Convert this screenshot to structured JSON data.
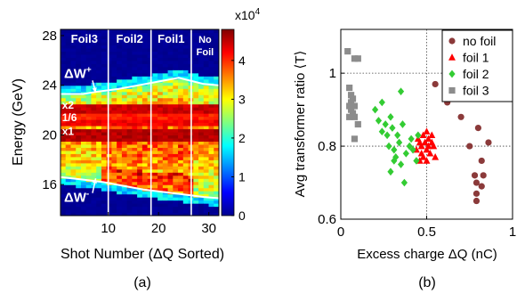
{
  "chart_data": [
    {
      "type": "heatmap",
      "panel_label": "(a)",
      "xlabel": "Shot Number (ΔQ Sorted)",
      "ylabel": "Energy (GeV)",
      "xlim": [
        0.5,
        32
      ],
      "ylim": [
        13.5,
        28.5
      ],
      "xticks": [
        {
          "value": 10,
          "label": "10"
        },
        {
          "value": 20,
          "label": "20"
        },
        {
          "value": 30,
          "label": "30"
        }
      ],
      "yticks": [
        {
          "value": 16,
          "label": "16"
        },
        {
          "value": 20,
          "label": "20"
        },
        {
          "value": 24,
          "label": "24"
        },
        {
          "value": 28,
          "label": "28"
        }
      ],
      "colorbar": {
        "multiplier": "x10",
        "exponent": "4",
        "range": [
          0,
          4.8
        ],
        "ticks": [
          {
            "value": 0,
            "label": "0"
          },
          {
            "value": 1,
            "label": "1"
          },
          {
            "value": 2,
            "label": "2"
          },
          {
            "value": 3,
            "label": "3"
          },
          {
            "value": 4,
            "label": "4"
          }
        ]
      },
      "regions": [
        {
          "label": "Foil3",
          "from": 0.5,
          "to": 10
        },
        {
          "label": "Foil2",
          "from": 10,
          "to": 18.5
        },
        {
          "label": "Foil1",
          "from": 18.5,
          "to": 26.5
        },
        {
          "label": "No\nFoil",
          "from": 26.5,
          "to": 32
        }
      ],
      "annotations": [
        {
          "label": "ΔW",
          "sup": "+",
          "x": 1.2,
          "y": 24.6,
          "arrow_to": [
            7.5,
            23.4
          ]
        },
        {
          "label": "ΔW",
          "sup": "-",
          "x": 1.2,
          "y": 14.6,
          "arrow_to": [
            7.5,
            16.5
          ]
        },
        {
          "label": "x2",
          "x": 0.8,
          "y": 22.1
        },
        {
          "label": "1/6",
          "x": 0.8,
          "y": 21.1
        },
        {
          "label": "x1",
          "x": 0.8,
          "y": 20.0
        }
      ],
      "upper_edge": [
        [
          0.5,
          23.3
        ],
        [
          5,
          23.3
        ],
        [
          8,
          23.5
        ],
        [
          12,
          23.7
        ],
        [
          16,
          24.0
        ],
        [
          20,
          24.3
        ],
        [
          24,
          24.6
        ],
        [
          27,
          24.3
        ],
        [
          29,
          24.1
        ],
        [
          32,
          24.0
        ]
      ],
      "lower_edge": [
        [
          0.5,
          16.6
        ],
        [
          5,
          16.4
        ],
        [
          9,
          16.2
        ],
        [
          13,
          15.9
        ],
        [
          17,
          15.6
        ],
        [
          21,
          15.4
        ],
        [
          25,
          15.2
        ],
        [
          29,
          15.0
        ],
        [
          32,
          14.9
        ]
      ],
      "bands": [
        {
          "y": 22.1,
          "width": 0.25,
          "value": 4.6
        },
        {
          "y": 21.55,
          "width": 0.2,
          "value": 4.2
        },
        {
          "y": 21.0,
          "width": 0.2,
          "value": 4.4
        },
        {
          "y": 20.0,
          "width": 0.3,
          "value": 4.7
        }
      ]
    },
    {
      "type": "scatter",
      "panel_label": "(b)",
      "xlabel": "Excess charge ΔQ (nC)",
      "ylabel": "Avg transformer ratio ⟨T⟩",
      "xlim": [
        0,
        1
      ],
      "ylim": [
        0.6,
        1.12
      ],
      "xticks": [
        {
          "value": 0,
          "label": "0"
        },
        {
          "value": 0.5,
          "label": "0.5"
        },
        {
          "value": 1,
          "label": "1"
        }
      ],
      "yticks": [
        {
          "value": 0.6,
          "label": "0.6"
        },
        {
          "value": 0.8,
          "label": "0.8"
        },
        {
          "value": 1,
          "label": "1"
        }
      ],
      "grid": true,
      "legend": "top-right",
      "series": [
        {
          "name": "no foil",
          "marker": "circle",
          "color": "#8b3a3a",
          "points": [
            [
              0.55,
              0.97
            ],
            [
              0.62,
              0.92
            ],
            [
              0.7,
              0.88
            ],
            [
              0.8,
              0.85
            ],
            [
              0.83,
              0.72
            ],
            [
              0.86,
              0.81
            ],
            [
              0.78,
              0.72
            ],
            [
              0.79,
              0.7
            ],
            [
              0.82,
              0.69
            ],
            [
              0.82,
              0.76
            ],
            [
              0.79,
              0.67
            ],
            [
              0.79,
              0.65
            ],
            [
              0.75,
              0.8
            ]
          ]
        },
        {
          "name": "foil 1",
          "marker": "triangle",
          "color": "#ff0000",
          "points": [
            [
              0.44,
              0.79
            ],
            [
              0.45,
              0.82
            ],
            [
              0.46,
              0.81
            ],
            [
              0.47,
              0.8
            ],
            [
              0.47,
              0.78
            ],
            [
              0.48,
              0.83
            ],
            [
              0.48,
              0.77
            ],
            [
              0.49,
              0.81
            ],
            [
              0.5,
              0.84
            ],
            [
              0.5,
              0.79
            ],
            [
              0.51,
              0.8
            ],
            [
              0.51,
              0.82
            ],
            [
              0.52,
              0.78
            ],
            [
              0.53,
              0.81
            ],
            [
              0.53,
              0.83
            ],
            [
              0.54,
              0.8
            ],
            [
              0.46,
              0.76
            ],
            [
              0.55,
              0.77
            ],
            [
              0.5,
              0.76
            ]
          ]
        },
        {
          "name": "foil 2",
          "marker": "diamond",
          "color": "#33cc33",
          "points": [
            [
              0.2,
              0.9
            ],
            [
              0.22,
              0.87
            ],
            [
              0.24,
              0.92
            ],
            [
              0.26,
              0.86
            ],
            [
              0.27,
              0.83
            ],
            [
              0.28,
              0.8
            ],
            [
              0.29,
              0.88
            ],
            [
              0.3,
              0.85
            ],
            [
              0.31,
              0.79
            ],
            [
              0.32,
              0.77
            ],
            [
              0.33,
              0.83
            ],
            [
              0.34,
              0.81
            ],
            [
              0.35,
              0.75
            ],
            [
              0.36,
              0.86
            ],
            [
              0.37,
              0.7
            ],
            [
              0.38,
              0.78
            ],
            [
              0.4,
              0.8
            ],
            [
              0.41,
              0.82
            ],
            [
              0.42,
              0.79
            ],
            [
              0.44,
              0.76
            ],
            [
              0.29,
              0.73
            ],
            [
              0.31,
              0.76
            ],
            [
              0.24,
              0.84
            ],
            [
              0.35,
              0.95
            ],
            [
              0.45,
              0.83
            ]
          ]
        },
        {
          "name": "foil 3",
          "marker": "square",
          "color": "#8c8c8c",
          "points": [
            [
              0.04,
              1.06
            ],
            [
              0.08,
              1.04
            ],
            [
              0.1,
              1.04
            ],
            [
              0.05,
              0.96
            ],
            [
              0.06,
              0.94
            ],
            [
              0.07,
              0.93
            ],
            [
              0.06,
              0.92
            ],
            [
              0.08,
              0.91
            ],
            [
              0.06,
              0.9
            ],
            [
              0.07,
              0.89
            ],
            [
              0.08,
              0.88
            ],
            [
              0.05,
              0.88
            ],
            [
              0.1,
              0.86
            ],
            [
              0.08,
              0.82
            ],
            [
              0.05,
              0.91
            ]
          ]
        }
      ]
    }
  ]
}
